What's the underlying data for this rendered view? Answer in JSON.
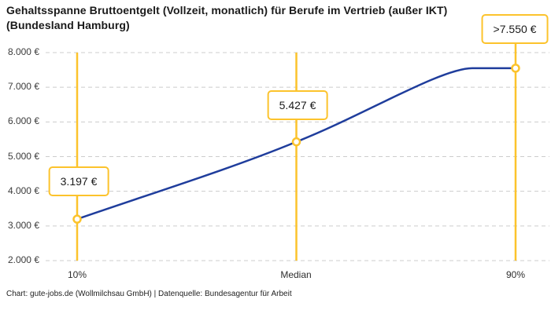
{
  "title": {
    "line1": "Gehaltsspanne Bruttoentgelt (Vollzeit, monatlich) für Berufe im Vertrieb (außer IKT)",
    "line2": "(Bundesland Hamburg)"
  },
  "footer": "Chart: gute-jobs.de (Wollmilchsau GmbH) | Datenquelle: Bundesagentur für Arbeit",
  "chart_data": {
    "type": "line",
    "title": "Gehaltsspanne Bruttoentgelt (Vollzeit, monatlich) für Berufe im Vertrieb (außer IKT) (Bundesland Hamburg)",
    "categories": [
      "10%",
      "Median",
      "90%"
    ],
    "values": [
      3197,
      5427,
      7550
    ],
    "value_labels": [
      "3.197 €",
      "5.427 €",
      ">7.550 €"
    ],
    "xlabel": "",
    "ylabel": "",
    "ylim": [
      2000,
      8000
    ],
    "grid": true,
    "y_ticks": [
      {
        "label": "8.000 €",
        "value": 8000
      },
      {
        "label": "7.000 €",
        "value": 7000
      },
      {
        "label": "6.000 €",
        "value": 6000
      },
      {
        "label": "5.000 €",
        "value": 5000
      },
      {
        "label": "4.000 €",
        "value": 4000
      },
      {
        "label": "3.000 €",
        "value": 3000
      },
      {
        "label": "2.000 €",
        "value": 2000
      }
    ],
    "colors": {
      "line": "#1f3d9c",
      "accent": "#fcc32c",
      "marker_fill": "#ffffff",
      "gridline": "#cccccc"
    }
  }
}
